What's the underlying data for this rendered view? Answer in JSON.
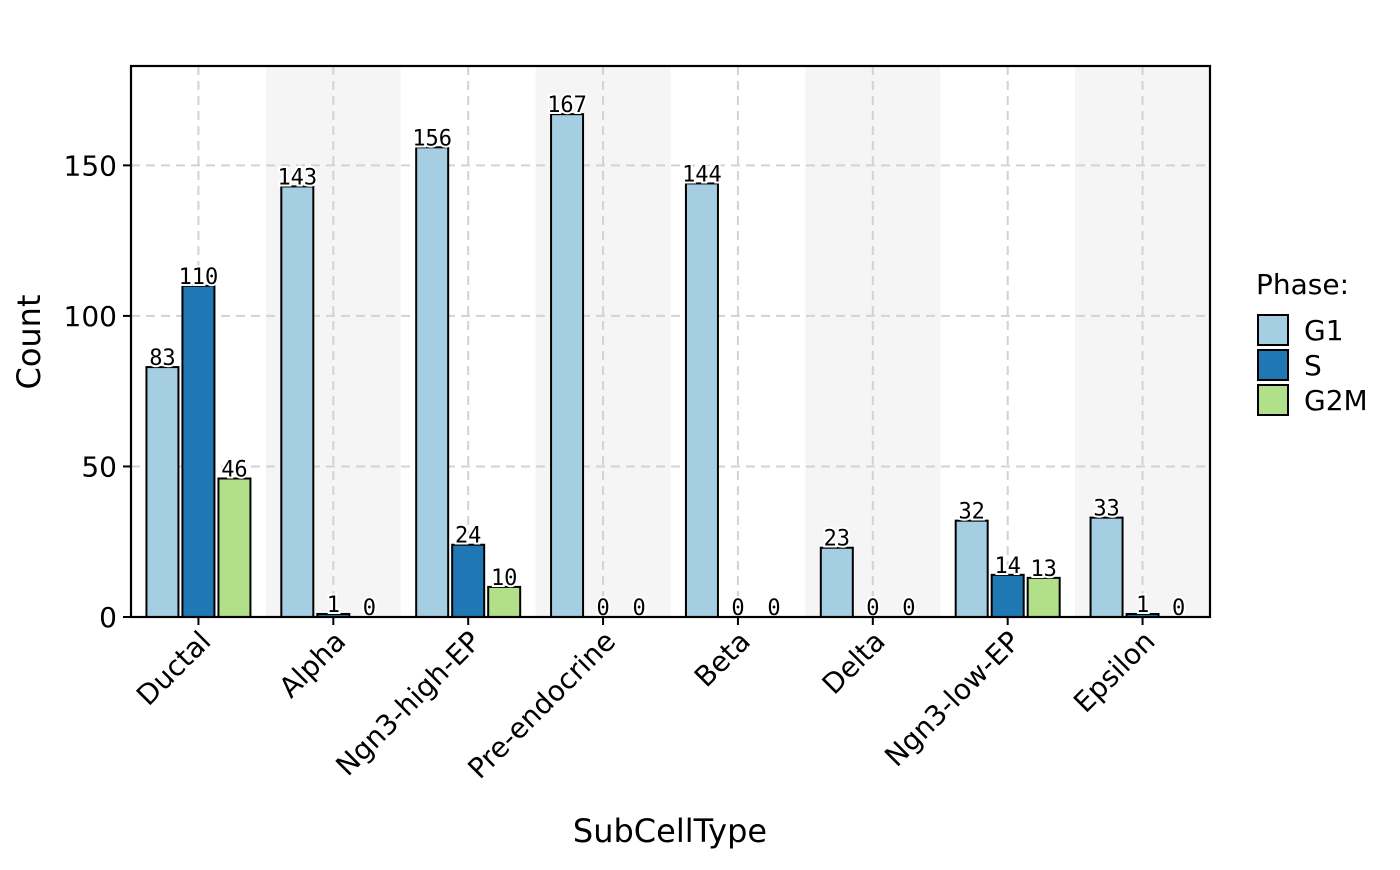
{
  "chart_data": {
    "type": "bar",
    "xlabel": "SubCellType",
    "ylabel": "Count",
    "ylim": [
      0,
      183
    ],
    "yticks": [
      0,
      50,
      100,
      150
    ],
    "categories": [
      "Ductal",
      "Alpha",
      "Ngn3-high-EP",
      "Pre-endocrine",
      "Beta",
      "Delta",
      "Ngn3-low-EP",
      "Epsilon"
    ],
    "series": [
      {
        "name": "G1",
        "color": "#a6cee3",
        "values": [
          83,
          143,
          156,
          167,
          144,
          23,
          32,
          33
        ]
      },
      {
        "name": "S",
        "color": "#1f78b4",
        "values": [
          110,
          1,
          24,
          0,
          0,
          0,
          14,
          1
        ]
      },
      {
        "name": "G2M",
        "color": "#b2df8a",
        "values": [
          46,
          0,
          10,
          0,
          0,
          0,
          13,
          0
        ]
      }
    ],
    "legend": {
      "title": "Phase:",
      "position": "right"
    },
    "grid": true,
    "alternating_background": true
  }
}
